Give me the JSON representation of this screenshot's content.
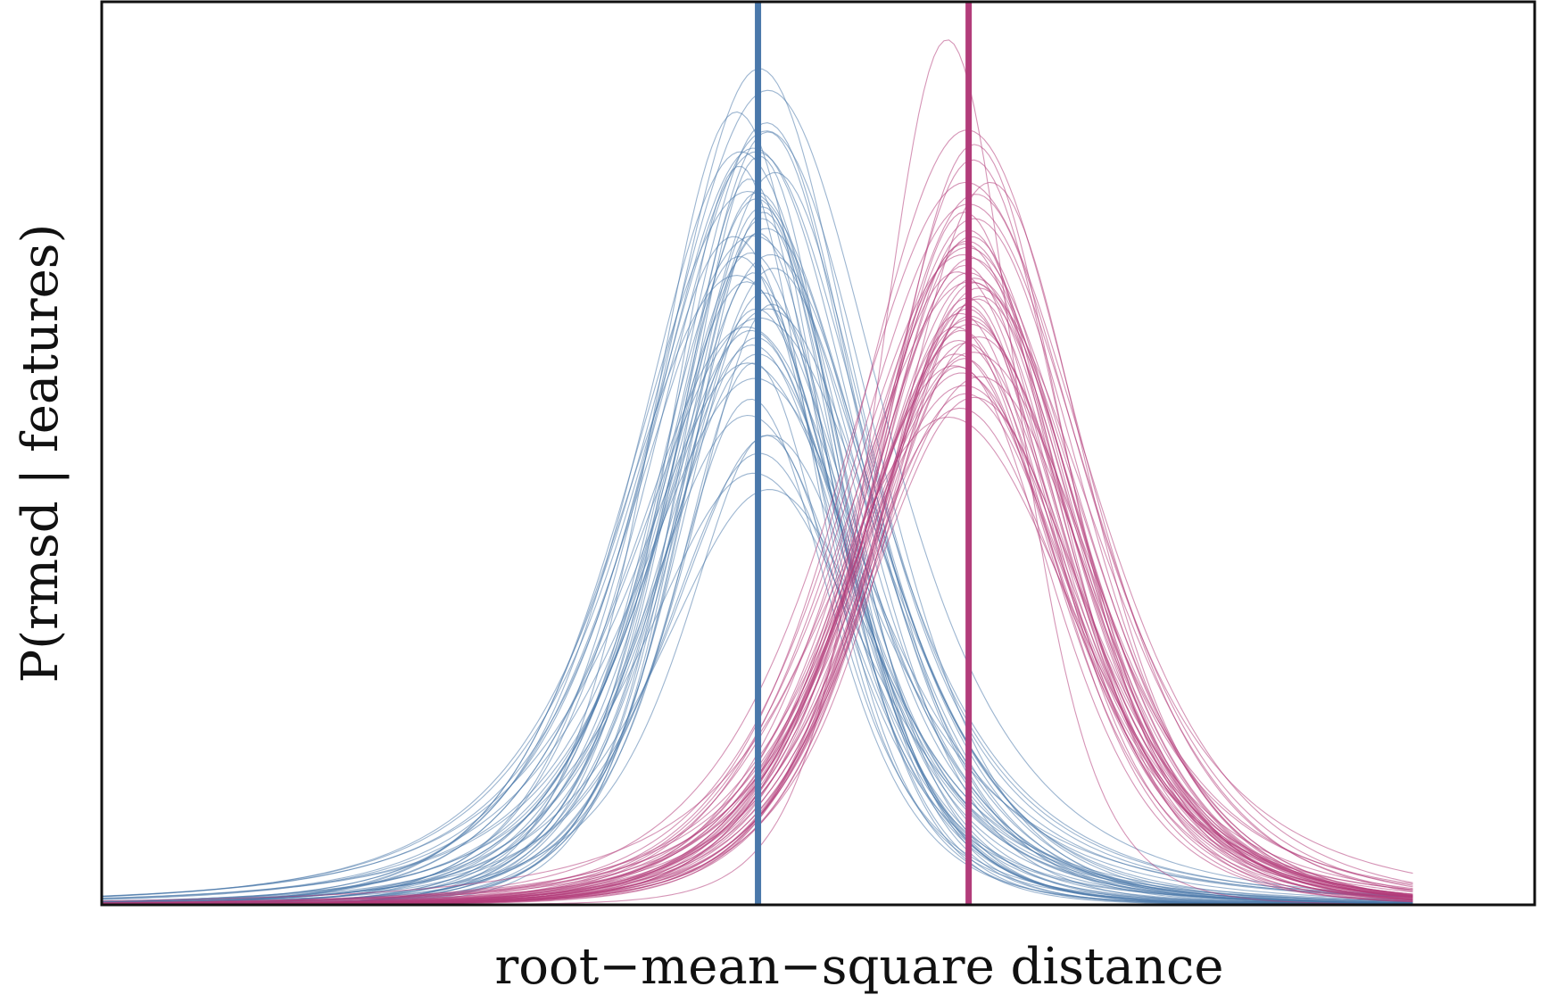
{
  "chart_data": {
    "type": "line",
    "xlabel": "root−mean−square distance",
    "ylabel": "P(rmsd | features)",
    "x_ticks": [],
    "y_ticks": [],
    "xlim": [
      0,
      1
    ],
    "ylim": [
      0,
      1
    ],
    "grid": false,
    "legend": "none",
    "x_domain": [
      0,
      0.915
    ],
    "colors": {
      "group_a": "#4a78aa",
      "group_b": "#b23c7a"
    },
    "series": [
      {
        "group": "group_a",
        "center": 0.458,
        "reference_line": true,
        "curves": [
          {
            "mu": 0.459,
            "peak": 0.926,
            "s": 0.078,
            "nu": 2.3
          },
          {
            "mu": 0.465,
            "peak": 0.902,
            "s": 0.088,
            "nu": 2.9
          },
          {
            "mu": 0.443,
            "peak": 0.878,
            "s": 0.061,
            "nu": 7.5
          },
          {
            "mu": 0.465,
            "peak": 0.856,
            "s": 0.073,
            "nu": 2.2
          },
          {
            "mu": 0.446,
            "peak": 0.834,
            "s": 0.077,
            "nu": 4.1
          },
          {
            "mu": 0.464,
            "peak": 0.857,
            "s": 0.079,
            "nu": 7.1
          },
          {
            "mu": 0.459,
            "peak": 0.829,
            "s": 0.056,
            "nu": 5.9
          },
          {
            "mu": 0.464,
            "peak": 0.866,
            "s": 0.07,
            "nu": 4.8
          },
          {
            "mu": 0.455,
            "peak": 0.838,
            "s": 0.076,
            "nu": 6.9
          },
          {
            "mu": 0.457,
            "peak": 0.834,
            "s": 0.085,
            "nu": 2.6
          },
          {
            "mu": 0.47,
            "peak": 0.811,
            "s": 0.076,
            "nu": 2.3
          },
          {
            "mu": 0.458,
            "peak": 0.789,
            "s": 0.063,
            "nu": 6.9
          },
          {
            "mu": 0.462,
            "peak": 0.767,
            "s": 0.057,
            "nu": 3.5
          },
          {
            "mu": 0.455,
            "peak": 0.741,
            "s": 0.086,
            "nu": 5.1
          },
          {
            "mu": 0.445,
            "peak": 0.818,
            "s": 0.055,
            "nu": 3.5
          },
          {
            "mu": 0.461,
            "peak": 0.773,
            "s": 0.062,
            "nu": 4.0
          },
          {
            "mu": 0.457,
            "peak": 0.782,
            "s": 0.069,
            "nu": 2.7
          },
          {
            "mu": 0.464,
            "peak": 0.749,
            "s": 0.075,
            "nu": 4.3
          },
          {
            "mu": 0.445,
            "peak": 0.718,
            "s": 0.065,
            "nu": 5.2
          },
          {
            "mu": 0.453,
            "peak": 0.722,
            "s": 0.064,
            "nu": 6.5
          },
          {
            "mu": 0.458,
            "peak": 0.744,
            "s": 0.056,
            "nu": 7.0
          },
          {
            "mu": 0.45,
            "peak": 0.69,
            "s": 0.07,
            "nu": 3.6
          },
          {
            "mu": 0.462,
            "peak": 0.678,
            "s": 0.061,
            "nu": 5.6
          },
          {
            "mu": 0.443,
            "peak": 0.697,
            "s": 0.085,
            "nu": 7.2
          },
          {
            "mu": 0.465,
            "peak": 0.66,
            "s": 0.081,
            "nu": 6.7
          },
          {
            "mu": 0.45,
            "peak": 0.64,
            "s": 0.084,
            "nu": 5.3
          },
          {
            "mu": 0.454,
            "peak": 0.62,
            "s": 0.068,
            "nu": 7.2
          },
          {
            "mu": 0.457,
            "peak": 0.628,
            "s": 0.07,
            "nu": 2.8
          },
          {
            "mu": 0.455,
            "peak": 0.6,
            "s": 0.057,
            "nu": 3.0
          },
          {
            "mu": 0.456,
            "peak": 0.583,
            "s": 0.089,
            "nu": 3.1
          },
          {
            "mu": 0.453,
            "peak": 0.56,
            "s": 0.058,
            "nu": 4.6
          },
          {
            "mu": 0.451,
            "peak": 0.542,
            "s": 0.074,
            "nu": 6.2
          },
          {
            "mu": 0.466,
            "peak": 0.52,
            "s": 0.073,
            "nu": 3.5
          },
          {
            "mu": 0.459,
            "peak": 0.5,
            "s": 0.068,
            "nu": 5.9
          },
          {
            "mu": 0.455,
            "peak": 0.478,
            "s": 0.083,
            "nu": 3.0
          },
          {
            "mu": 0.466,
            "peak": 0.46,
            "s": 0.081,
            "nu": 3.6
          },
          {
            "mu": 0.464,
            "peak": 0.52,
            "s": 0.062,
            "nu": 2.4
          },
          {
            "mu": 0.451,
            "peak": 0.6,
            "s": 0.089,
            "nu": 2.3
          },
          {
            "mu": 0.457,
            "peak": 0.66,
            "s": 0.064,
            "nu": 6.4
          },
          {
            "mu": 0.455,
            "peak": 0.7,
            "s": 0.055,
            "nu": 4.8
          },
          {
            "mu": 0.467,
            "peak": 0.72,
            "s": 0.079,
            "nu": 3.6
          },
          {
            "mu": 0.461,
            "peak": 0.76,
            "s": 0.059,
            "nu": 7.1
          },
          {
            "mu": 0.451,
            "peak": 0.79,
            "s": 0.085,
            "nu": 6.6
          },
          {
            "mu": 0.441,
            "peak": 0.74,
            "s": 0.076,
            "nu": 2.6
          },
          {
            "mu": 0.469,
            "peak": 0.705,
            "s": 0.069,
            "nu": 6.5
          },
          {
            "mu": 0.468,
            "peak": 0.665,
            "s": 0.064,
            "nu": 2.3
          },
          {
            "mu": 0.453,
            "peak": 0.636,
            "s": 0.071,
            "nu": 6.9
          },
          {
            "mu": 0.458,
            "peak": 0.61,
            "s": 0.073,
            "nu": 3.6
          },
          {
            "mu": 0.452,
            "peak": 0.804,
            "s": 0.058,
            "nu": 2.5
          },
          {
            "mu": 0.459,
            "peak": 0.65,
            "s": 0.089,
            "nu": 6.7
          }
        ]
      },
      {
        "group": "group_b",
        "center": 0.605,
        "reference_line": true,
        "curves": [
          {
            "mu": 0.59,
            "peak": 0.958,
            "s": 0.05,
            "nu": 6.5
          },
          {
            "mu": 0.604,
            "peak": 0.858,
            "s": 0.083,
            "nu": 4.7
          },
          {
            "mu": 0.609,
            "peak": 0.842,
            "s": 0.066,
            "nu": 5.3
          },
          {
            "mu": 0.608,
            "peak": 0.825,
            "s": 0.069,
            "nu": 4.4
          },
          {
            "mu": 0.62,
            "peak": 0.8,
            "s": 0.071,
            "nu": 4.5
          },
          {
            "mu": 0.603,
            "peak": 0.8,
            "s": 0.091,
            "nu": 4.3
          },
          {
            "mu": 0.61,
            "peak": 0.787,
            "s": 0.085,
            "nu": 2.3
          },
          {
            "mu": 0.609,
            "peak": 0.76,
            "s": 0.079,
            "nu": 6.6
          },
          {
            "mu": 0.607,
            "peak": 0.74,
            "s": 0.078,
            "nu": 2.5
          },
          {
            "mu": 0.602,
            "peak": 0.732,
            "s": 0.075,
            "nu": 3.8
          },
          {
            "mu": 0.607,
            "peak": 0.716,
            "s": 0.076,
            "nu": 7.2
          },
          {
            "mu": 0.605,
            "peak": 0.7,
            "s": 0.077,
            "nu": 6.8
          },
          {
            "mu": 0.609,
            "peak": 0.689,
            "s": 0.072,
            "nu": 3.6
          },
          {
            "mu": 0.604,
            "peak": 0.672,
            "s": 0.068,
            "nu": 3.3
          },
          {
            "mu": 0.604,
            "peak": 0.66,
            "s": 0.072,
            "nu": 2.7
          },
          {
            "mu": 0.605,
            "peak": 0.648,
            "s": 0.08,
            "nu": 5.4
          },
          {
            "mu": 0.6,
            "peak": 0.636,
            "s": 0.068,
            "nu": 5.3
          },
          {
            "mu": 0.603,
            "peak": 0.622,
            "s": 0.08,
            "nu": 2.8
          },
          {
            "mu": 0.596,
            "peak": 0.61,
            "s": 0.076,
            "nu": 5.3
          },
          {
            "mu": 0.595,
            "peak": 0.597,
            "s": 0.082,
            "nu": 5.2
          },
          {
            "mu": 0.6,
            "peak": 0.589,
            "s": 0.08,
            "nu": 6.1
          },
          {
            "mu": 0.602,
            "peak": 0.575,
            "s": 0.085,
            "nu": 5.4
          },
          {
            "mu": 0.609,
            "peak": 0.562,
            "s": 0.078,
            "nu": 5.7
          },
          {
            "mu": 0.599,
            "peak": 0.55,
            "s": 0.081,
            "nu": 3.7
          },
          {
            "mu": 0.591,
            "peak": 0.54,
            "s": 0.09,
            "nu": 6.8
          },
          {
            "mu": 0.598,
            "peak": 0.625,
            "s": 0.075,
            "nu": 7.0
          },
          {
            "mu": 0.604,
            "peak": 0.728,
            "s": 0.083,
            "nu": 6.8
          },
          {
            "mu": 0.597,
            "peak": 0.701,
            "s": 0.077,
            "nu": 3.8
          },
          {
            "mu": 0.612,
            "peak": 0.683,
            "s": 0.077,
            "nu": 5.1
          },
          {
            "mu": 0.606,
            "peak": 0.652,
            "s": 0.071,
            "nu": 5.1
          },
          {
            "mu": 0.601,
            "peak": 0.72,
            "s": 0.086,
            "nu": 6.9
          },
          {
            "mu": 0.613,
            "peak": 0.674,
            "s": 0.071,
            "nu": 6.1
          },
          {
            "mu": 0.596,
            "peak": 0.64,
            "s": 0.075,
            "nu": 2.4
          },
          {
            "mu": 0.602,
            "peak": 0.605,
            "s": 0.069,
            "nu": 3.8
          },
          {
            "mu": 0.605,
            "peak": 0.776,
            "s": 0.088,
            "nu": 4.6
          },
          {
            "mu": 0.605,
            "peak": 0.747,
            "s": 0.067,
            "nu": 6.4
          },
          {
            "mu": 0.609,
            "peak": 0.694,
            "s": 0.078,
            "nu": 5.6
          },
          {
            "mu": 0.604,
            "peak": 0.664,
            "s": 0.066,
            "nu": 4.4
          },
          {
            "mu": 0.612,
            "peak": 0.629,
            "s": 0.075,
            "nu": 5.9
          },
          {
            "mu": 0.613,
            "peak": 0.585,
            "s": 0.081,
            "nu": 6.7
          },
          {
            "mu": 0.602,
            "peak": 0.708,
            "s": 0.071,
            "nu": 3.6
          },
          {
            "mu": 0.606,
            "peak": 0.69,
            "s": 0.091,
            "nu": 6.6
          },
          {
            "mu": 0.611,
            "peak": 0.671,
            "s": 0.068,
            "nu": 3.9
          },
          {
            "mu": 0.599,
            "peak": 0.655,
            "s": 0.072,
            "nu": 3.4
          },
          {
            "mu": 0.604,
            "peak": 0.735,
            "s": 0.076,
            "nu": 5.1
          },
          {
            "mu": 0.608,
            "peak": 0.612,
            "s": 0.087,
            "nu": 6.8
          },
          {
            "mu": 0.603,
            "peak": 0.566,
            "s": 0.078,
            "nu": 4.2
          },
          {
            "mu": 0.602,
            "peak": 0.767,
            "s": 0.07,
            "nu": 2.5
          },
          {
            "mu": 0.606,
            "peak": 0.643,
            "s": 0.086,
            "nu": 3.2
          },
          {
            "mu": 0.598,
            "peak": 0.596,
            "s": 0.068,
            "nu": 5.2
          }
        ]
      }
    ]
  }
}
